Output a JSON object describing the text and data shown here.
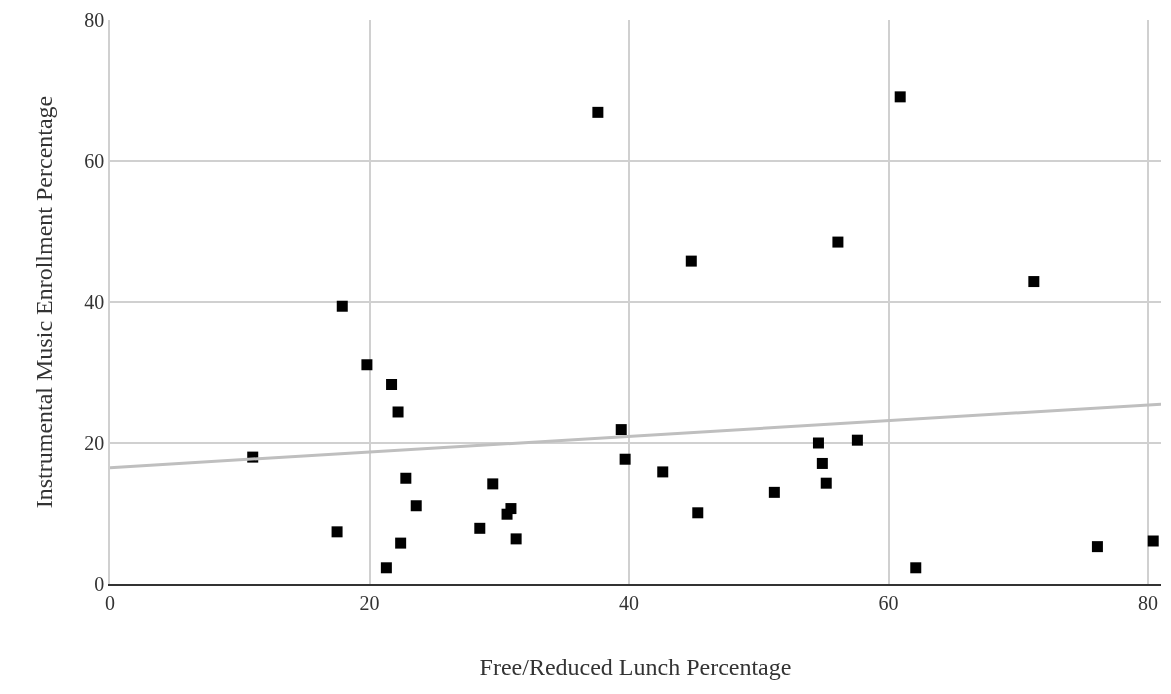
{
  "chart_data": {
    "type": "scatter",
    "xlabel": "Free/Reduced Lunch Percentage",
    "ylabel": "Instrumental Music Enrollment Percentage",
    "xlim": [
      0,
      81
    ],
    "xticks": [
      0,
      20,
      40,
      60,
      80
    ],
    "ylim": [
      0,
      80
    ],
    "yticks": [
      0,
      20,
      40,
      60,
      80
    ],
    "grid": true,
    "series": [
      {
        "marker": "square",
        "color": "#000000",
        "x": [
          11.0,
          17.9,
          17.5,
          19.8,
          21.7,
          22.2,
          22.8,
          23.6,
          22.4,
          21.3,
          29.5,
          30.9,
          30.6,
          28.5,
          31.3,
          37.6,
          39.4,
          39.7,
          44.8,
          42.6,
          45.3,
          56.1,
          51.2,
          54.6,
          54.9,
          55.2,
          57.6,
          60.9,
          62.1,
          71.2,
          76.1,
          80.4
        ],
        "values": [
          18.0,
          39.4,
          7.4,
          31.1,
          28.3,
          24.4,
          15.0,
          11.1,
          5.8,
          2.3,
          14.2,
          10.7,
          9.9,
          7.9,
          6.4,
          66.9,
          21.9,
          17.7,
          45.8,
          15.9,
          10.1,
          48.5,
          13.0,
          20.0,
          17.1,
          14.3,
          20.4,
          69.1,
          2.3,
          42.9,
          5.3,
          6.1
        ]
      },
      {
        "type": "line",
        "color": "#bfbfbf",
        "x": [
          0,
          81
        ],
        "values": [
          16.5,
          25.5
        ]
      }
    ]
  }
}
